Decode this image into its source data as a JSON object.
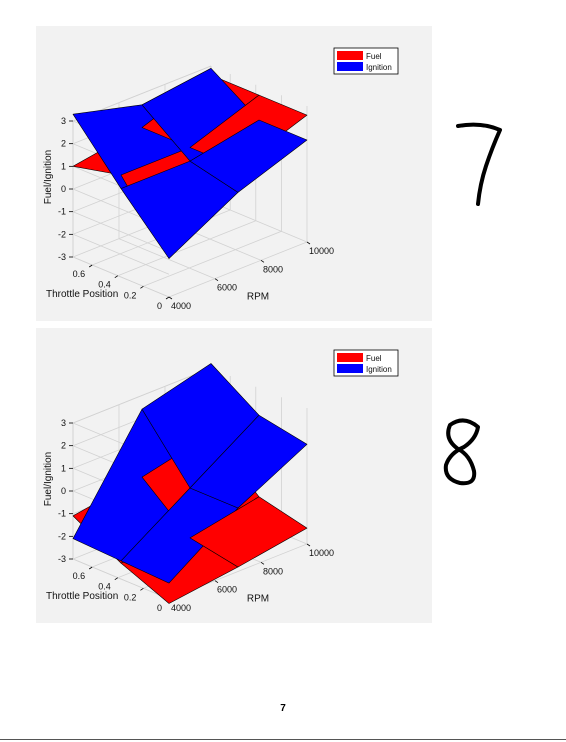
{
  "chart_data": [
    {
      "type": "surface",
      "title": "",
      "xlabel": "RPM",
      "ylabel": "Throttle Position",
      "zlabel": "Fuel/Ignition",
      "x_ticks": [
        "4000",
        "6000",
        "8000",
        "10000"
      ],
      "y_ticks": [
        "0",
        "0.2",
        "0.4",
        "0.6"
      ],
      "z_ticks": [
        "-3",
        "-2",
        "-1",
        "0",
        "1",
        "2",
        "3"
      ],
      "xlim": [
        4000,
        10000
      ],
      "ylim": [
        0,
        0.75
      ],
      "zlim": [
        -3,
        3
      ],
      "grid": true,
      "legend_position": "top-right",
      "rpm": [
        4000,
        7000,
        10000
      ],
      "throttle": [
        0,
        0.375,
        0.75
      ],
      "series": [
        {
          "name": "Fuel",
          "color": "#ff0000",
          "z": [
            [
              -1.3,
              1.5,
              2.6
            ],
            [
              1.5,
              1.5,
              2.6
            ],
            [
              1,
              1.5,
              2.6
            ]
          ]
        },
        {
          "name": "Ignition",
          "color": "#0000ff",
          "z": [
            [
              -1.3,
              0.4,
              1.5
            ],
            [
              0.9,
              0.9,
              1.5
            ],
            [
              3.3,
              2.5,
              2.9
            ]
          ]
        }
      ]
    },
    {
      "type": "surface",
      "title": "",
      "xlabel": "RPM",
      "ylabel": "Throttle Position",
      "zlabel": "Fuel/Ignition",
      "x_ticks": [
        "4000",
        "6000",
        "8000",
        "10000"
      ],
      "y_ticks": [
        "0",
        "0.2",
        "0.4",
        "0.6"
      ],
      "z_ticks": [
        "-3",
        "-2",
        "-1",
        "0",
        "1",
        "2",
        "3"
      ],
      "xlim": [
        4000,
        10000
      ],
      "ylim": [
        0,
        0.75
      ],
      "zlim": [
        -3,
        3
      ],
      "grid": true,
      "legend_position": "top-right",
      "rpm": [
        4000,
        7000,
        10000
      ],
      "throttle": [
        0,
        0.375,
        0.75
      ],
      "series": [
        {
          "name": "Fuel",
          "color": "#ff0000",
          "z": [
            [
              -3.2,
              -2.8,
              -2.3
            ],
            [
              -2.3,
              -2.4,
              -1.8
            ],
            [
              -1.1,
              -0.6,
              0.1
            ]
          ]
        },
        {
          "name": "Ignition",
          "color": "#0000ff",
          "z": [
            [
              -2.3,
              -0.2,
              1.4
            ],
            [
              -2.2,
              -0.2,
              1.8
            ],
            [
              -2.1,
              2.4,
              3.2
            ]
          ]
        }
      ]
    }
  ],
  "page_number": "7",
  "handwriting": [
    "7",
    "8"
  ]
}
